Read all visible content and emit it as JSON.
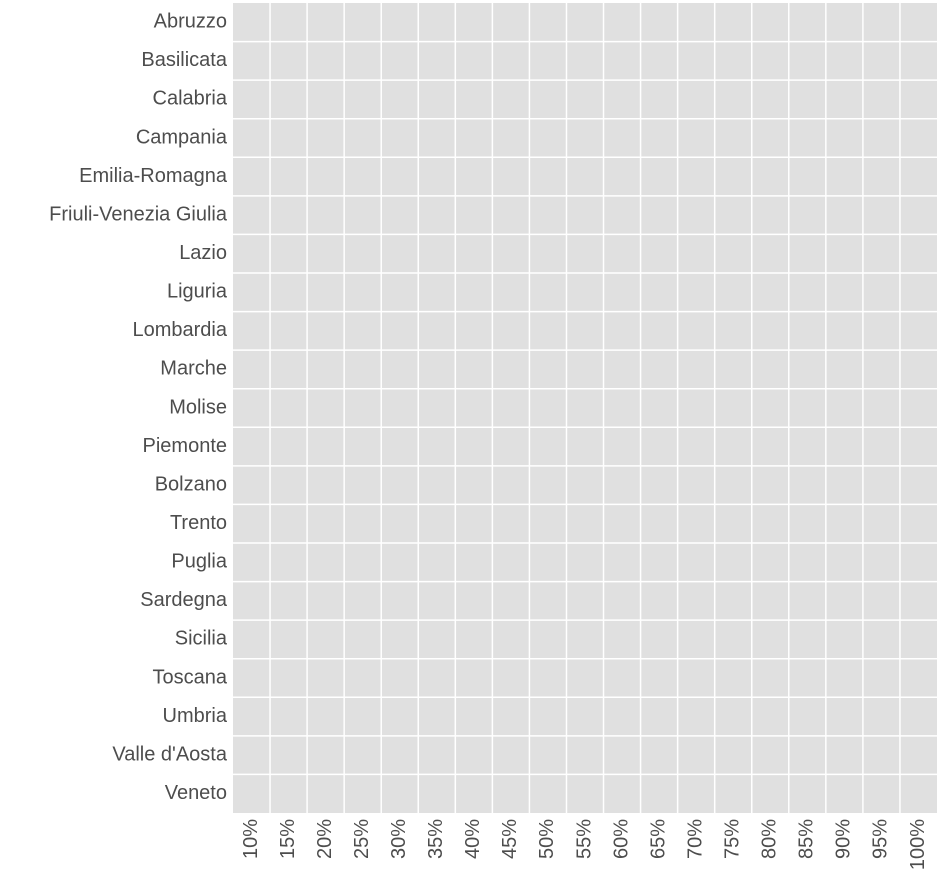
{
  "chart_data": {
    "type": "tile",
    "x_categories": [
      "10%",
      "15%",
      "20%",
      "25%",
      "30%",
      "35%",
      "40%",
      "45%",
      "50%",
      "55%",
      "60%",
      "65%",
      "70%",
      "75%",
      "80%",
      "85%",
      "90%",
      "95%",
      "100%"
    ],
    "y_categories": [
      "Abruzzo",
      "Basilicata",
      "Calabria",
      "Campania",
      "Emilia-Romagna",
      "Friuli-Venezia Giulia",
      "Lazio",
      "Liguria",
      "Lombardia",
      "Marche",
      "Molise",
      "Piemonte",
      "Bolzano",
      "Trento",
      "Puglia",
      "Sardegna",
      "Sicilia",
      "Toscana",
      "Umbria",
      "Valle d'Aosta",
      "Veneto"
    ],
    "panel_color": "#e0e0e0",
    "grid_color": "#ffffff"
  }
}
